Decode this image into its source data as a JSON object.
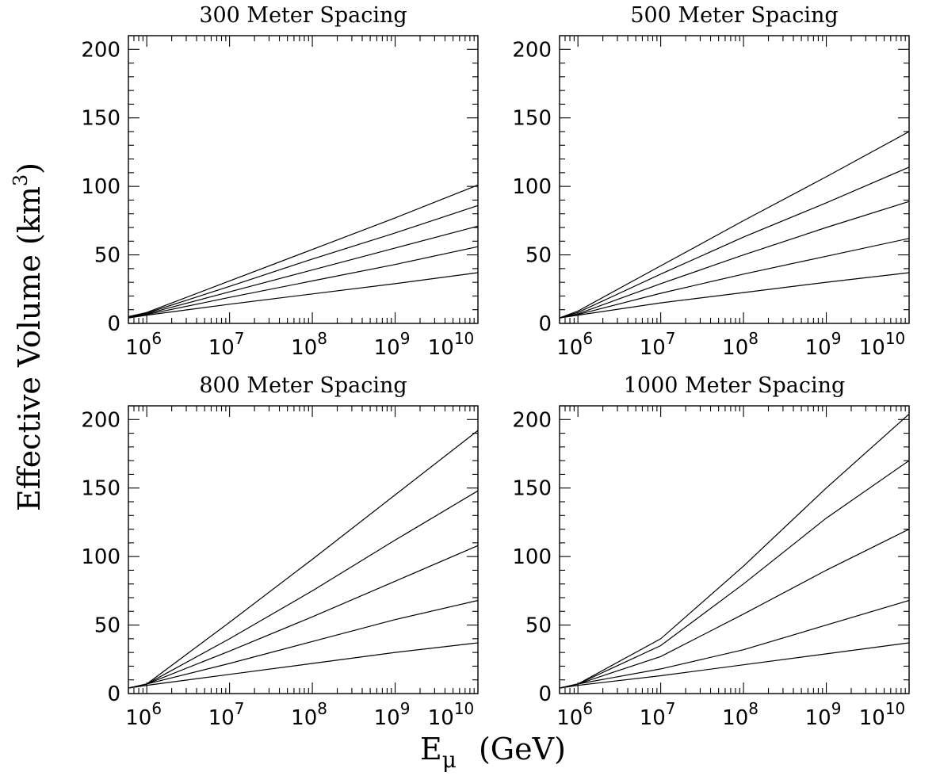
{
  "figure": {
    "ylabel": "Effective Volume (km",
    "ylabel_sup": "3",
    "ylabel_close": ")",
    "xlabel_main": "E",
    "xlabel_sub": "μ",
    "xlabel_unit": "(GeV)"
  },
  "chart_data": [
    {
      "type": "line",
      "title": "300 Meter Spacing",
      "x_scale": "log",
      "xlim": [
        600000,
        10000000000
      ],
      "ylim": [
        0,
        210
      ],
      "yticks": [
        0,
        50,
        100,
        150,
        200
      ],
      "xtick_labels": [
        {
          "base": "10",
          "exp": "6",
          "value": 1000000
        },
        {
          "base": "10",
          "exp": "7",
          "value": 10000000
        },
        {
          "base": "10",
          "exp": "8",
          "value": 100000000
        },
        {
          "base": "10",
          "exp": "9",
          "value": 1000000000
        },
        {
          "base": "10",
          "exp": "10",
          "value": 10000000000
        }
      ],
      "x": [
        600000,
        1000000,
        10000000,
        100000000,
        1000000000,
        10000000000
      ],
      "series": [
        {
          "values": [
            5,
            8,
            31,
            54,
            77,
            101
          ]
        },
        {
          "values": [
            5,
            7.5,
            27,
            47,
            66,
            86
          ]
        },
        {
          "values": [
            4.5,
            7,
            23,
            39,
            55,
            71
          ]
        },
        {
          "values": [
            4,
            6.5,
            19,
            31,
            43,
            56
          ]
        },
        {
          "values": [
            4,
            6,
            14,
            21.5,
            29,
            37
          ]
        }
      ]
    },
    {
      "type": "line",
      "title": "500 Meter Spacing",
      "x_scale": "log",
      "xlim": [
        600000,
        10000000000
      ],
      "ylim": [
        0,
        210
      ],
      "yticks": [
        0,
        50,
        100,
        150,
        200
      ],
      "xtick_labels": [
        {
          "base": "10",
          "exp": "6",
          "value": 1000000
        },
        {
          "base": "10",
          "exp": "7",
          "value": 10000000
        },
        {
          "base": "10",
          "exp": "8",
          "value": 100000000
        },
        {
          "base": "10",
          "exp": "9",
          "value": 1000000000
        },
        {
          "base": "10",
          "exp": "10",
          "value": 10000000000
        }
      ],
      "x": [
        600000,
        1000000,
        10000000,
        100000000,
        1000000000,
        10000000000
      ],
      "series": [
        {
          "values": [
            4,
            9,
            42,
            75,
            107,
            140
          ]
        },
        {
          "values": [
            4,
            8,
            36,
            63,
            88,
            114
          ]
        },
        {
          "values": [
            4,
            7,
            29,
            50,
            70,
            89
          ]
        },
        {
          "values": [
            4,
            6.5,
            22,
            36,
            49,
            62
          ]
        },
        {
          "values": [
            4,
            6,
            15,
            22.5,
            30,
            37
          ]
        }
      ]
    },
    {
      "type": "line",
      "title": "800 Meter Spacing",
      "x_scale": "log",
      "xlim": [
        600000,
        10000000000
      ],
      "ylim": [
        0,
        210
      ],
      "yticks": [
        0,
        50,
        100,
        150,
        200
      ],
      "xtick_labels": [
        {
          "base": "10",
          "exp": "6",
          "value": 1000000
        },
        {
          "base": "10",
          "exp": "7",
          "value": 10000000
        },
        {
          "base": "10",
          "exp": "8",
          "value": 100000000
        },
        {
          "base": "10",
          "exp": "9",
          "value": 1000000000
        },
        {
          "base": "10",
          "exp": "10",
          "value": 10000000000
        }
      ],
      "x": [
        600000,
        1000000,
        10000000,
        100000000,
        1000000000,
        10000000000
      ],
      "series": [
        {
          "values": [
            4,
            7,
            52,
            98,
            145,
            192
          ]
        },
        {
          "values": [
            4,
            7,
            40,
            75,
            112,
            148
          ]
        },
        {
          "values": [
            4,
            7,
            31,
            56,
            82,
            108
          ]
        },
        {
          "values": [
            4,
            7,
            22,
            38,
            54,
            68
          ]
        },
        {
          "values": [
            4,
            6,
            14,
            22,
            30,
            37
          ]
        }
      ]
    },
    {
      "type": "line",
      "title": "1000 Meter Spacing",
      "x_scale": "log",
      "xlim": [
        600000,
        10000000000
      ],
      "ylim": [
        0,
        210
      ],
      "yticks": [
        0,
        50,
        100,
        150,
        200
      ],
      "xtick_labels": [
        {
          "base": "10",
          "exp": "6",
          "value": 1000000
        },
        {
          "base": "10",
          "exp": "7",
          "value": 10000000
        },
        {
          "base": "10",
          "exp": "8",
          "value": 100000000
        },
        {
          "base": "10",
          "exp": "9",
          "value": 1000000000
        },
        {
          "base": "10",
          "exp": "10",
          "value": 10000000000
        }
      ],
      "x": [
        600000,
        1000000,
        10000000,
        100000000,
        1000000000,
        10000000000
      ],
      "series": [
        {
          "values": [
            4,
            7,
            40,
            93,
            150,
            204
          ]
        },
        {
          "values": [
            4,
            7,
            35,
            80,
            128,
            170
          ]
        },
        {
          "values": [
            4,
            7,
            27,
            58,
            90,
            120
          ]
        },
        {
          "values": [
            4,
            7,
            18,
            32,
            50,
            68
          ]
        },
        {
          "values": [
            4,
            6,
            13,
            21,
            29,
            37
          ]
        }
      ]
    }
  ]
}
